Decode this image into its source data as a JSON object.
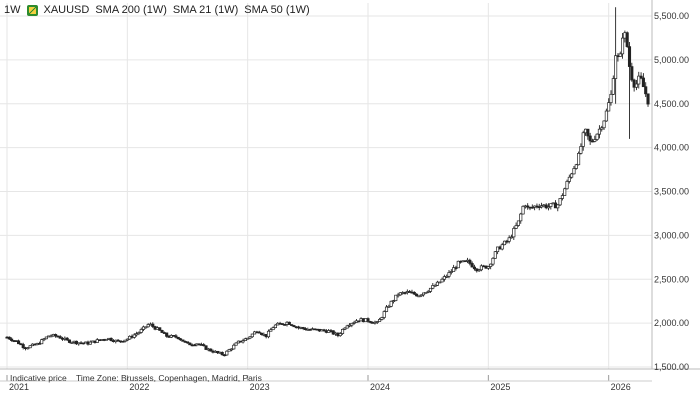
{
  "legend": {
    "interval": "1W",
    "symbol": "XAUUSD",
    "indicators": [
      "SMA 200 (1W)",
      "SMA 21 (1W)",
      "SMA 50 (1W)"
    ]
  },
  "footer": {
    "price_note": "Indicative price",
    "timezone": "Time Zone: Brussels, Copenhagen, Madrid, Paris"
  },
  "colors": {
    "candle": "#222222",
    "grid": "#e6e6e6",
    "logo": "#2e8b2e"
  },
  "chart_data": {
    "type": "candlestick",
    "ylim": [
      1400,
      5650
    ],
    "xlim": [
      2021.0,
      2026.36
    ],
    "grid": true,
    "y_ticks": [
      {
        "value": 1500,
        "label": "1,500.00"
      },
      {
        "value": 2000,
        "label": "2,000.00"
      },
      {
        "value": 2500,
        "label": "2,500.00"
      },
      {
        "value": 3000,
        "label": "3,000.00"
      },
      {
        "value": 3500,
        "label": "3,500.00"
      },
      {
        "value": 4000,
        "label": "4,000.00"
      },
      {
        "value": 4500,
        "label": "4,500.00"
      },
      {
        "value": 5000,
        "label": "5,000.00"
      },
      {
        "value": 5500,
        "label": "5,500.00"
      }
    ],
    "x_ticks": [
      {
        "value": 2021,
        "label": "2021"
      },
      {
        "value": 2022,
        "label": "2022"
      },
      {
        "value": 2023,
        "label": "2023"
      },
      {
        "value": 2024,
        "label": "2024"
      },
      {
        "value": 2025,
        "label": "2025"
      },
      {
        "value": 2026,
        "label": "2026"
      }
    ],
    "price_path": [
      [
        2021.0,
        1840
      ],
      [
        2021.08,
        1790
      ],
      [
        2021.15,
        1720
      ],
      [
        2021.25,
        1760
      ],
      [
        2021.35,
        1860
      ],
      [
        2021.42,
        1850
      ],
      [
        2021.5,
        1800
      ],
      [
        2021.58,
        1780
      ],
      [
        2021.67,
        1770
      ],
      [
        2021.75,
        1800
      ],
      [
        2021.83,
        1830
      ],
      [
        2021.92,
        1790
      ],
      [
        2022.0,
        1820
      ],
      [
        2022.1,
        1900
      ],
      [
        2022.18,
        1990
      ],
      [
        2022.25,
        1930
      ],
      [
        2022.33,
        1850
      ],
      [
        2022.42,
        1840
      ],
      [
        2022.5,
        1760
      ],
      [
        2022.58,
        1770
      ],
      [
        2022.67,
        1700
      ],
      [
        2022.75,
        1660
      ],
      [
        2022.8,
        1640
      ],
      [
        2022.85,
        1700
      ],
      [
        2022.92,
        1780
      ],
      [
        2023.0,
        1830
      ],
      [
        2023.08,
        1920
      ],
      [
        2023.15,
        1850
      ],
      [
        2023.22,
        1970
      ],
      [
        2023.33,
        2010
      ],
      [
        2023.42,
        1950
      ],
      [
        2023.5,
        1930
      ],
      [
        2023.58,
        1920
      ],
      [
        2023.67,
        1910
      ],
      [
        2023.75,
        1860
      ],
      [
        2023.82,
        1980
      ],
      [
        2023.92,
        2040
      ],
      [
        2024.0,
        2030
      ],
      [
        2024.08,
        2000
      ],
      [
        2024.17,
        2200
      ],
      [
        2024.25,
        2330
      ],
      [
        2024.33,
        2350
      ],
      [
        2024.42,
        2320
      ],
      [
        2024.5,
        2380
      ],
      [
        2024.58,
        2450
      ],
      [
        2024.67,
        2560
      ],
      [
        2024.75,
        2680
      ],
      [
        2024.83,
        2700
      ],
      [
        2024.9,
        2620
      ],
      [
        2025.0,
        2650
      ],
      [
        2025.08,
        2850
      ],
      [
        2025.17,
        2950
      ],
      [
        2025.25,
        3150
      ],
      [
        2025.3,
        3380
      ],
      [
        2025.33,
        3300
      ],
      [
        2025.42,
        3350
      ],
      [
        2025.5,
        3330
      ],
      [
        2025.58,
        3350
      ],
      [
        2025.67,
        3650
      ],
      [
        2025.75,
        3900
      ],
      [
        2025.8,
        4200
      ],
      [
        2025.85,
        4050
      ],
      [
        2025.92,
        4200
      ],
      [
        2025.97,
        4350
      ],
      [
        2026.02,
        4600
      ],
      [
        2026.06,
        5100
      ],
      [
        2026.09,
        4950
      ],
      [
        2026.12,
        5350
      ],
      [
        2026.15,
        5200
      ],
      [
        2026.18,
        4850
      ],
      [
        2026.22,
        4700
      ],
      [
        2026.26,
        4800
      ],
      [
        2026.3,
        4650
      ],
      [
        2026.33,
        4520
      ]
    ],
    "extremes": [
      {
        "x": 2026.06,
        "high": 5600,
        "low": 4500
      },
      {
        "x": 2026.17,
        "high": 4900,
        "low": 4100
      }
    ]
  }
}
